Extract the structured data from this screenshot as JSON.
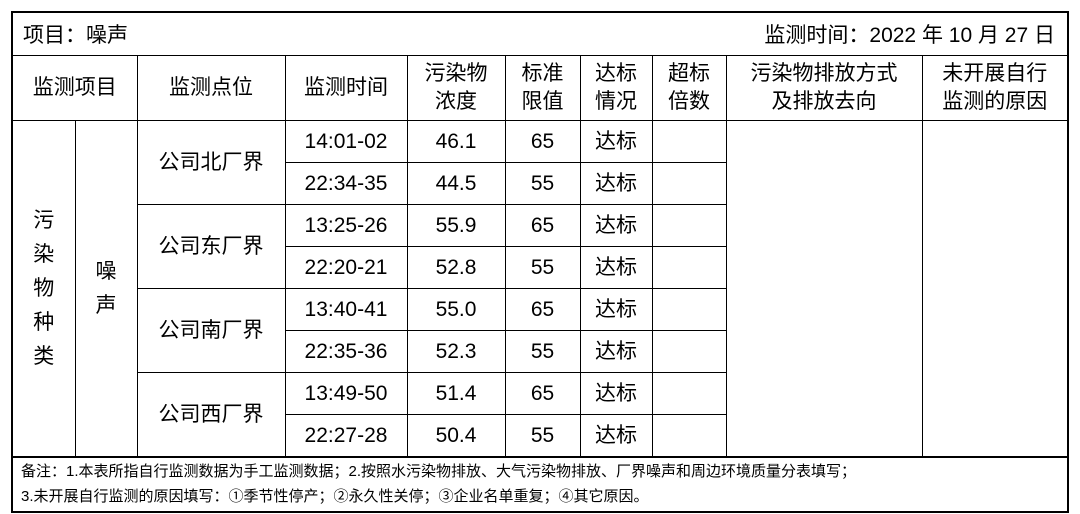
{
  "header": {
    "project": "项目：噪声",
    "monitor_date": "监测时间：2022 年 10 月 27 日"
  },
  "columns": [
    "监测项目",
    "监测点位",
    "监测时间",
    "污染物\n浓度",
    "标准\n限值",
    "达标\n情况",
    "超标\n倍数",
    "污染物排放方式\n及排放去向",
    "未开展自行\n监测的原因"
  ],
  "category": "污\n染\n物\n种\n类",
  "item": "噪\n声",
  "points": [
    {
      "name": "公司北厂界",
      "rows": [
        {
          "time": "14:01-02",
          "value": "46.1",
          "limit": "65",
          "status": "达标",
          "exceed": ""
        },
        {
          "time": "22:34-35",
          "value": "44.5",
          "limit": "55",
          "status": "达标",
          "exceed": ""
        }
      ]
    },
    {
      "name": "公司东厂界",
      "rows": [
        {
          "time": "13:25-26",
          "value": "55.9",
          "limit": "65",
          "status": "达标",
          "exceed": ""
        },
        {
          "time": "22:20-21",
          "value": "52.8",
          "limit": "55",
          "status": "达标",
          "exceed": ""
        }
      ]
    },
    {
      "name": "公司南厂界",
      "rows": [
        {
          "time": "13:40-41",
          "value": "55.0",
          "limit": "65",
          "status": "达标",
          "exceed": ""
        },
        {
          "time": "22:35-36",
          "value": "52.3",
          "limit": "55",
          "status": "达标",
          "exceed": ""
        }
      ]
    },
    {
      "name": "公司西厂界",
      "rows": [
        {
          "time": "13:49-50",
          "value": "51.4",
          "limit": "65",
          "status": "达标",
          "exceed": ""
        },
        {
          "time": "22:27-28",
          "value": "50.4",
          "limit": "55",
          "status": "达标",
          "exceed": ""
        }
      ]
    }
  ],
  "notes": [
    "备注：1.本表所指自行监测数据为手工监测数据；2.按照水污染物排放、大气污染物排放、厂界噪声和周边环境质量分表填写；",
    "3.未开展自行监测的原因填写：①季节性停产；②永久性关停；③企业名单重复；④其它原因。"
  ]
}
